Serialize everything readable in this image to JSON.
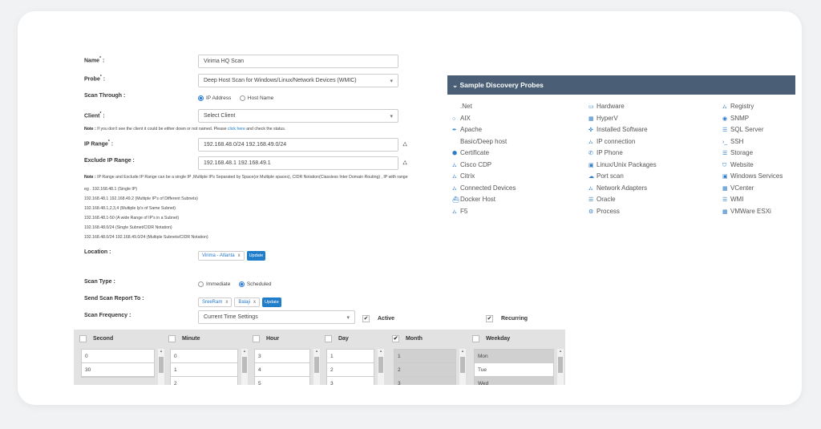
{
  "form": {
    "name": {
      "label": "Name",
      "value": "Virima HQ Scan"
    },
    "probe": {
      "label": "Probe",
      "value": "Deep Host Scan for Windows/Linux/Network Devices (WMIC)"
    },
    "scan_through": {
      "label": "Scan Through :",
      "options": [
        "IP Address",
        "Host Name"
      ],
      "selected": "IP Address"
    },
    "client": {
      "label": "Client",
      "value": "Select Client"
    },
    "client_note": {
      "prefix": "Note :",
      "text": " If you don't see the client it could be either down or not named. Please ",
      "link": "click here",
      "suffix": " and check the status."
    },
    "ip_range": {
      "label": "IP Range",
      "value": "192.168.48.0/24 192.168.49.0/24"
    },
    "exclude_ip_range": {
      "label": "Exclude IP Range :",
      "value": "192.168.48.1 192.168.49.1"
    },
    "ip_note": {
      "prefix": "Note :",
      "text": " IP Range and Exclude IP Range can be a single IP ,Multiple IPs Separated by Space(or Multiple spaces), CIDR Notation(Classless Inter Domain Routing) , IP with range",
      "examples": [
        "eg . 192.168.48.1 (Single IP)",
        "192.168.48.1 192.168.49.2 (Multiple IP's of Different Subnets)",
        "192.168.48.1,2,3,4 (Multiple Ip's of Same Subnet)",
        "192.168.48.1-50 (A wide Range of IP's in a Subnet)",
        "192.168.48.0/24 (Single Subnet/CIDR Notation)",
        "192.168.48.0/24 192.168.49.0/24 (Multiple Subnets/CIDR Notation)"
      ]
    },
    "location": {
      "label": "Location :",
      "tags": [
        "Virima - Atlanta"
      ],
      "button": "Update"
    },
    "scan_type": {
      "label": "Scan Type :",
      "options": [
        "Immediate",
        "Scheduled"
      ],
      "selected": "Scheduled"
    },
    "send_report": {
      "label": "Send Scan Report To :",
      "tags": [
        "SreeRam",
        "Balaji"
      ],
      "button": "Update"
    },
    "scan_frequency": {
      "label": "Scan Frequency :",
      "value": "Current Time Settings",
      "active_label": "Active",
      "active": true,
      "recurring_label": "Recurring",
      "recurring": true
    }
  },
  "schedule": {
    "columns": [
      {
        "label": "Second",
        "checked": false,
        "items": [
          "0",
          "30"
        ],
        "selected": []
      },
      {
        "label": "Minute",
        "checked": false,
        "items": [
          "0",
          "1",
          "2"
        ],
        "selected": []
      },
      {
        "label": "Hour",
        "checked": false,
        "items": [
          "3",
          "4",
          "5"
        ],
        "selected": []
      },
      {
        "label": "Day",
        "checked": false,
        "items": [
          "1",
          "2",
          "3"
        ],
        "selected": []
      },
      {
        "label": "Month",
        "checked": true,
        "items": [
          "1",
          "2",
          "3"
        ],
        "selected": [
          "1",
          "2",
          "3"
        ]
      },
      {
        "label": "Weekday",
        "checked": false,
        "items": [
          "Mon",
          "Tue",
          "Wed"
        ],
        "selected": [
          "Mon",
          "Wed"
        ]
      }
    ]
  },
  "probes_panel": {
    "title": "Sample Discovery Probes",
    "header_color": "#4a5f75",
    "columns": [
      [
        {
          "label": ".Net",
          "icon": "code-icon"
        },
        {
          "label": "AIX",
          "icon": "circle-icon"
        },
        {
          "label": "Apache",
          "icon": "feather-icon"
        },
        {
          "label": "Basic/Deep host",
          "icon": "code-icon"
        },
        {
          "label": "Certificate",
          "icon": "certificate-icon"
        },
        {
          "label": "Cisco CDP",
          "icon": "sitemap-icon"
        },
        {
          "label": "Citrix",
          "icon": "sitemap-icon"
        },
        {
          "label": "Connected Devices",
          "icon": "sitemap-icon"
        },
        {
          "label": "Docker Host",
          "icon": "ship-icon"
        },
        {
          "label": "F5",
          "icon": "sitemap-icon"
        }
      ],
      [
        {
          "label": "Hardware",
          "icon": "desktop-icon"
        },
        {
          "label": "HyperV",
          "icon": "server-icon"
        },
        {
          "label": "Installed Software",
          "icon": "puzzle-icon"
        },
        {
          "label": "IP connection",
          "icon": "sitemap-icon"
        },
        {
          "label": "IP Phone",
          "icon": "phone-icon"
        },
        {
          "label": "Linux/Unix Packages",
          "icon": "packages-icon"
        },
        {
          "label": "Port scan",
          "icon": "cloud-icon"
        },
        {
          "label": "Network Adapters",
          "icon": "sitemap-icon"
        },
        {
          "label": "Oracle",
          "icon": "database-icon"
        },
        {
          "label": "Process",
          "icon": "cogs-icon"
        }
      ],
      [
        {
          "label": "Registry",
          "icon": "sitemap-icon"
        },
        {
          "label": "SNMP",
          "icon": "eye-icon"
        },
        {
          "label": "SQL Server",
          "icon": "database-icon"
        },
        {
          "label": "SSH",
          "icon": "terminal-icon"
        },
        {
          "label": "Storage",
          "icon": "database-icon"
        },
        {
          "label": "Website",
          "icon": "shield-icon"
        },
        {
          "label": "Windows Services",
          "icon": "window-icon"
        },
        {
          "label": "VCenter",
          "icon": "server-icon"
        },
        {
          "label": "WMI",
          "icon": "database-icon"
        },
        {
          "label": "VMWare ESXi",
          "icon": "server-icon"
        }
      ]
    ]
  }
}
